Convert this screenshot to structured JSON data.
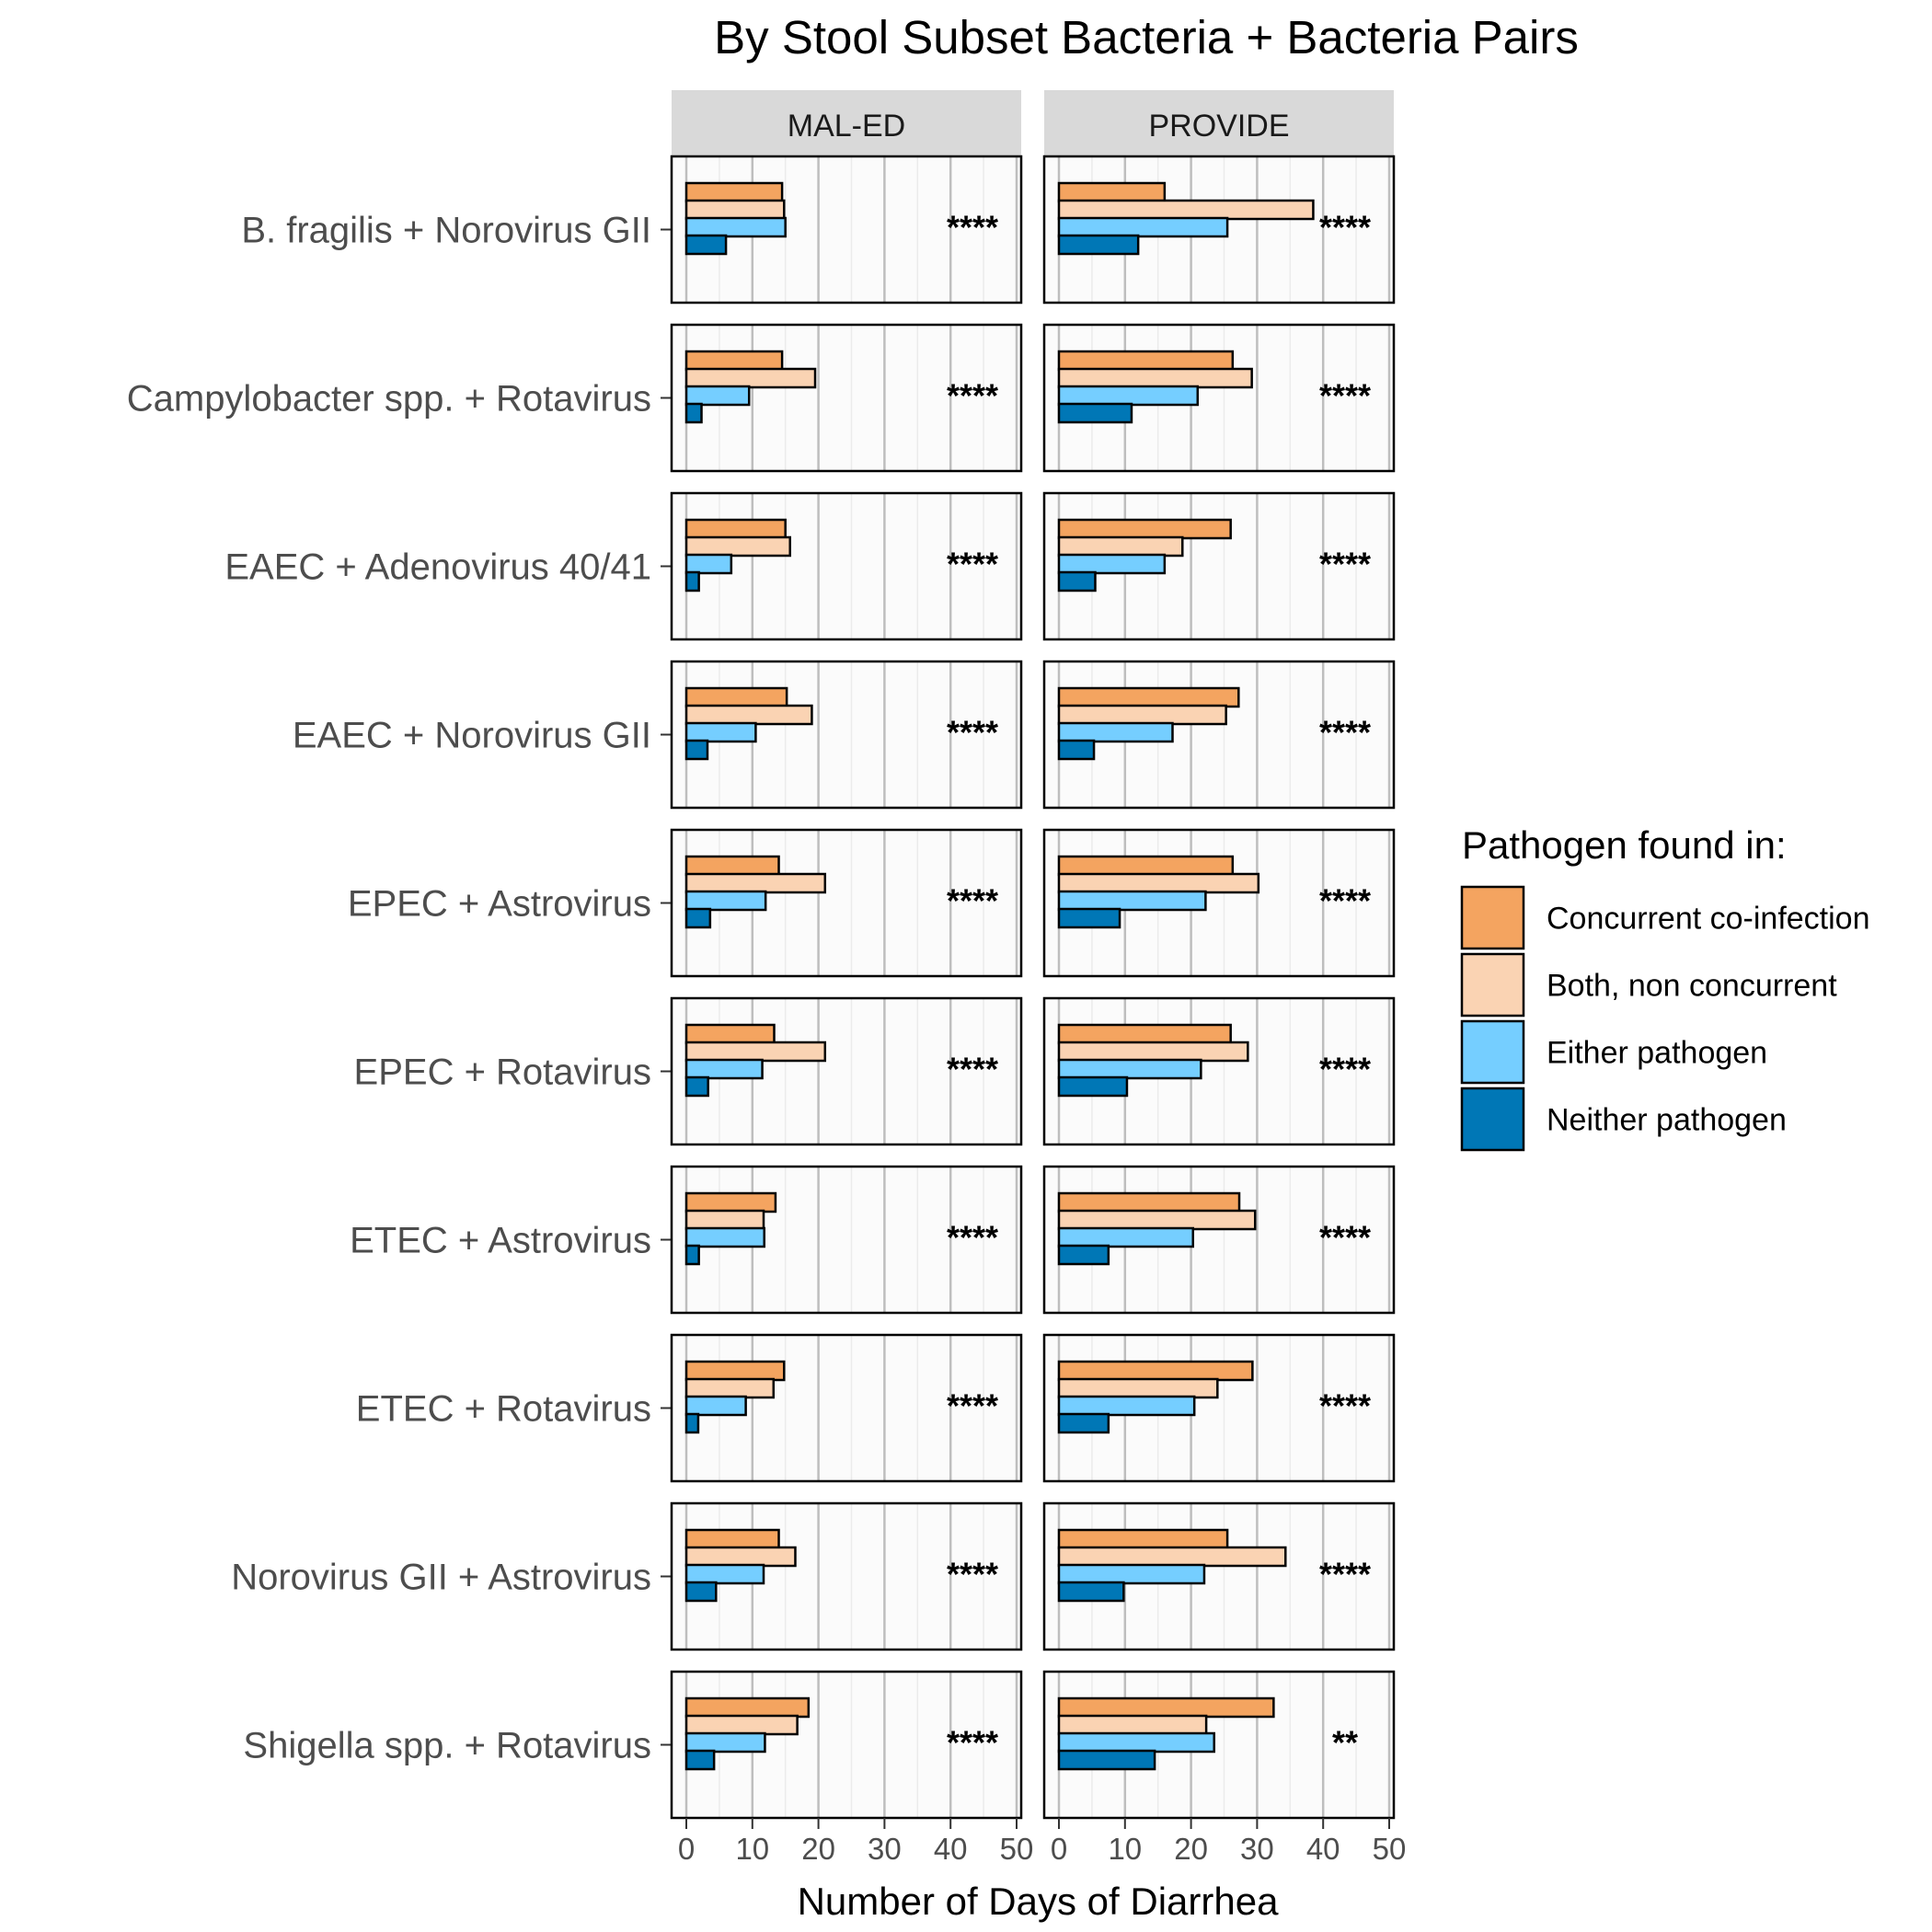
{
  "chart_data": {
    "type": "bar",
    "orientation": "horizontal",
    "title": "By Stool Subset Bacteria + Bacteria Pairs",
    "xlabel": "Number of Days of Diarrhea",
    "ylabel": "",
    "xlim": [
      0,
      50
    ],
    "xticks": [
      "0",
      "10",
      "20",
      "30",
      "40",
      "50"
    ],
    "grid": true,
    "legend_placement": "right",
    "legend_title": "Pathogen found in:",
    "facets": [
      "MAL-ED",
      "PROVIDE"
    ],
    "categories": [
      "B. fragilis + Norovirus GII",
      "Campylobacter spp. + Rotavirus",
      "EAEC + Adenovirus 40/41",
      "EAEC + Norovirus GII",
      "EPEC + Astrovirus",
      "EPEC + Rotavirus",
      "ETEC + Astrovirus",
      "ETEC + Rotavirus",
      "Norovirus GII + Astrovirus",
      "Shigella spp. + Rotavirus"
    ],
    "series": [
      {
        "name": "Concurrent co-infection",
        "color": "#F4A460"
      },
      {
        "name": "Both, non concurrent",
        "color": "#FAD3B3"
      },
      {
        "name": "Either pathogen",
        "color": "#75CEFF"
      },
      {
        "name": "Neither pathogen",
        "color": "#0077B6"
      }
    ],
    "values": {
      "MAL-ED": [
        [
          14.5,
          14.8,
          15.0,
          6.0
        ],
        [
          14.5,
          19.5,
          9.5,
          2.3
        ],
        [
          15.0,
          15.7,
          6.8,
          1.9
        ],
        [
          15.2,
          19.0,
          10.5,
          3.2
        ],
        [
          14.0,
          21.0,
          12.0,
          3.6
        ],
        [
          13.3,
          21.0,
          11.5,
          3.3
        ],
        [
          13.5,
          11.7,
          11.8,
          1.9
        ],
        [
          14.8,
          13.2,
          9.0,
          1.8
        ],
        [
          14.0,
          16.5,
          11.7,
          4.5
        ],
        [
          18.5,
          16.8,
          11.9,
          4.2
        ]
      ],
      "PROVIDE": [
        [
          16.0,
          38.5,
          25.5,
          12.0
        ],
        [
          26.3,
          29.2,
          21.0,
          11.0
        ],
        [
          26.0,
          18.7,
          16.0,
          5.5
        ],
        [
          27.2,
          25.3,
          17.2,
          5.3
        ],
        [
          26.3,
          30.2,
          22.2,
          9.2
        ],
        [
          26.0,
          28.6,
          21.5,
          10.3
        ],
        [
          27.3,
          29.7,
          20.3,
          7.5
        ],
        [
          29.3,
          24.0,
          20.5,
          7.5
        ],
        [
          25.5,
          34.3,
          22.0,
          9.8
        ],
        [
          32.5,
          22.3,
          23.5,
          14.5
        ]
      ]
    },
    "significance": {
      "MAL-ED": [
        "****",
        "****",
        "****",
        "****",
        "****",
        "****",
        "****",
        "****",
        "****",
        "****"
      ],
      "PROVIDE": [
        "****",
        "****",
        "****",
        "****",
        "****",
        "****",
        "****",
        "****",
        "****",
        "**"
      ]
    }
  }
}
